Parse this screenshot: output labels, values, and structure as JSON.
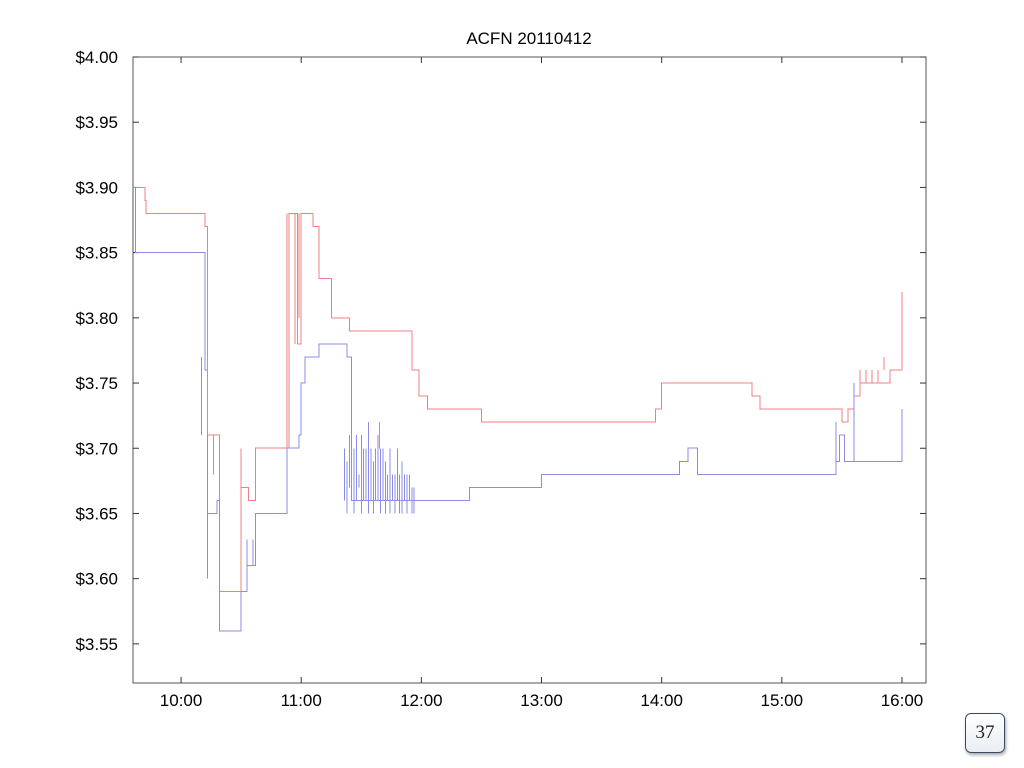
{
  "page_number": "37",
  "chart_data": {
    "type": "line",
    "title": "ACFN 20110412",
    "xlabel": "",
    "ylabel": "",
    "x_unit": "time of day (hours)",
    "xlim": [
      9.6,
      16.2
    ],
    "ylim": [
      3.52,
      4.0
    ],
    "x_ticks": [
      {
        "value": 10,
        "label": "10:00"
      },
      {
        "value": 11,
        "label": "11:00"
      },
      {
        "value": 12,
        "label": "12:00"
      },
      {
        "value": 13,
        "label": "13:00"
      },
      {
        "value": 14,
        "label": "14:00"
      },
      {
        "value": 15,
        "label": "15:00"
      },
      {
        "value": 16,
        "label": "16:00"
      }
    ],
    "y_ticks": [
      {
        "value": 4.0,
        "label": "$4.00"
      },
      {
        "value": 3.95,
        "label": "$3.95"
      },
      {
        "value": 3.9,
        "label": "$3.90"
      },
      {
        "value": 3.85,
        "label": "$3.85"
      },
      {
        "value": 3.8,
        "label": "$3.80"
      },
      {
        "value": 3.75,
        "label": "$3.75"
      },
      {
        "value": 3.7,
        "label": "$3.70"
      },
      {
        "value": 3.65,
        "label": "$3.65"
      },
      {
        "value": 3.6,
        "label": "$3.60"
      },
      {
        "value": 3.55,
        "label": "$3.55"
      }
    ],
    "grid": false,
    "legend": "none",
    "series": [
      {
        "color": "#f08080",
        "step": true,
        "x": [
          9.6,
          9.7,
          9.71,
          10.17,
          10.2,
          10.22,
          10.32,
          10.48,
          10.5,
          10.56,
          10.62,
          10.88,
          10.9,
          10.97,
          11.0,
          11.02,
          11.1,
          11.15,
          11.25,
          11.3,
          11.4,
          11.43,
          11.6,
          11.75,
          11.9,
          11.92,
          11.98,
          12.05,
          12.1,
          12.5,
          13.0,
          13.8,
          13.95,
          14.0,
          14.6,
          14.75,
          14.82,
          15.5,
          15.55,
          15.6,
          15.65,
          15.8,
          15.9,
          15.95,
          16.0
        ],
        "y": [
          3.9,
          3.89,
          3.88,
          3.88,
          3.87,
          3.71,
          3.59,
          3.59,
          3.67,
          3.66,
          3.7,
          3.7,
          3.88,
          3.78,
          3.88,
          3.88,
          3.87,
          3.83,
          3.8,
          3.8,
          3.79,
          3.79,
          3.79,
          3.79,
          3.79,
          3.76,
          3.74,
          3.73,
          3.73,
          3.72,
          3.72,
          3.72,
          3.73,
          3.75,
          3.75,
          3.74,
          3.73,
          3.72,
          3.73,
          3.74,
          3.75,
          3.75,
          3.76,
          3.76,
          3.82
        ]
      },
      {
        "color": "#8c8ce6",
        "step": true,
        "x": [
          9.6,
          9.62,
          10.17,
          10.2,
          10.22,
          10.3,
          10.32,
          10.47,
          10.5,
          10.55,
          10.62,
          10.88,
          10.98,
          11.0,
          11.03,
          11.1,
          11.15,
          11.3,
          11.38,
          11.42,
          11.95,
          12.0,
          12.2,
          12.4,
          12.6,
          13.0,
          13.5,
          14.15,
          14.22,
          14.3,
          14.5,
          15.45,
          15.48,
          15.52,
          15.8,
          16.0
        ],
        "y": [
          3.9,
          3.85,
          3.85,
          3.76,
          3.65,
          3.66,
          3.56,
          3.56,
          3.59,
          3.61,
          3.65,
          3.7,
          3.71,
          3.75,
          3.77,
          3.77,
          3.78,
          3.78,
          3.77,
          3.66,
          3.66,
          3.66,
          3.66,
          3.67,
          3.67,
          3.68,
          3.68,
          3.69,
          3.7,
          3.68,
          3.68,
          3.69,
          3.71,
          3.69,
          3.69,
          3.73
        ]
      }
    ],
    "spikes": [
      {
        "series": 1,
        "x": [
          11.36,
          11.38,
          11.4,
          11.42,
          11.44,
          11.46,
          11.48,
          11.5,
          11.52,
          11.54,
          11.56,
          11.58,
          11.6,
          11.62,
          11.64,
          11.66,
          11.68,
          11.7,
          11.72,
          11.74,
          11.76,
          11.78,
          11.8,
          11.82,
          11.84,
          11.86,
          11.88,
          11.9,
          11.92,
          11.94
        ],
        "low": [
          3.66,
          3.65,
          3.67,
          3.66,
          3.65,
          3.66,
          3.67,
          3.65,
          3.66,
          3.66,
          3.65,
          3.66,
          3.65,
          3.66,
          3.66,
          3.65,
          3.66,
          3.65,
          3.66,
          3.65,
          3.66,
          3.65,
          3.66,
          3.65,
          3.65,
          3.66,
          3.65,
          3.66,
          3.65,
          3.65
        ],
        "high": [
          3.7,
          3.69,
          3.71,
          3.71,
          3.7,
          3.71,
          3.68,
          3.71,
          3.7,
          3.7,
          3.72,
          3.7,
          3.69,
          3.7,
          3.71,
          3.7,
          3.7,
          3.69,
          3.68,
          3.7,
          3.68,
          3.68,
          3.7,
          3.68,
          3.69,
          3.68,
          3.68,
          3.68,
          3.67,
          3.67
        ]
      },
      {
        "series": 1,
        "x": [
          10.17,
          10.22,
          10.55,
          10.6,
          15.45,
          15.6
        ],
        "low": [
          3.71,
          3.6,
          3.59,
          3.61,
          3.69,
          3.69
        ],
        "high": [
          3.77,
          3.69,
          3.63,
          3.63,
          3.72,
          3.75
        ]
      },
      {
        "series": 0,
        "x": [
          10.22,
          10.27,
          10.5,
          10.88,
          10.95,
          10.98,
          11.65,
          15.65,
          15.7,
          15.75,
          15.8,
          15.85
        ],
        "low": [
          3.71,
          3.68,
          3.59,
          3.7,
          3.78,
          3.8,
          3.7,
          3.75,
          3.75,
          3.75,
          3.75,
          3.76
        ],
        "high": [
          3.87,
          3.71,
          3.7,
          3.88,
          3.88,
          3.88,
          3.72,
          3.76,
          3.76,
          3.76,
          3.76,
          3.77
        ]
      }
    ]
  }
}
